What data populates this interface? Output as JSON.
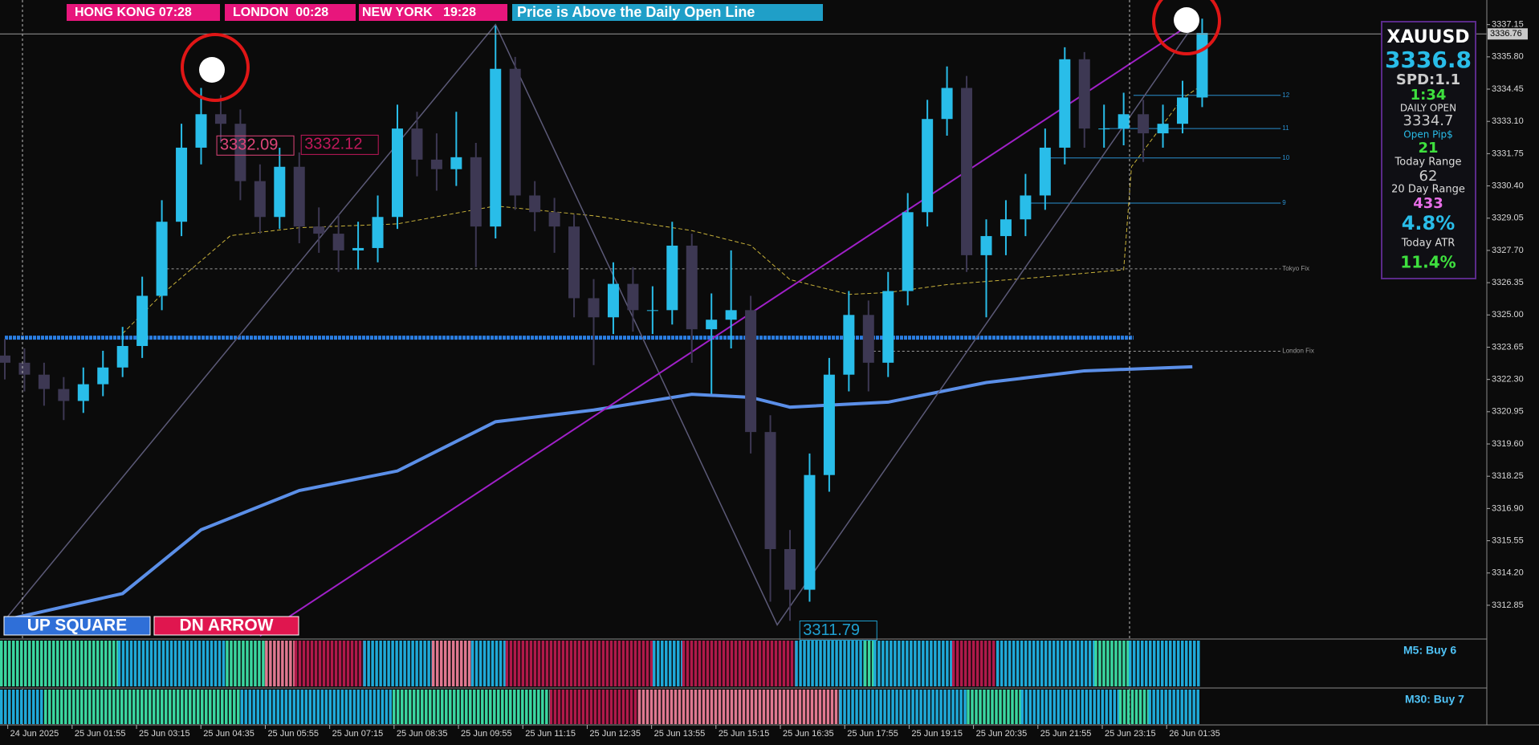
{
  "header": {
    "clocks": [
      "HONG KONG 07:28",
      "LONDON  00:28",
      "NEW YORK   19:28"
    ],
    "banner": "Price is Above the Daily Open Line"
  },
  "buttons": [
    "UP SQUARE",
    "DN ARROW"
  ],
  "panel": {
    "symbol": "XAUUSD",
    "price": "3336.8",
    "spread": "SPD:1.1",
    "timer": "1:34",
    "daily_open_label": "DAILY OPEN",
    "daily_open": "3334.7",
    "open_pips_label": "Open Pip$",
    "open_pips": "21",
    "today_range_label": "Today Range",
    "today_range": "62",
    "day20_range_label": "20 Day Range",
    "day20_range": "433",
    "ratio": "4.8%",
    "atr_label": "Today ATR",
    "atr": "11.4%"
  },
  "indicators": [
    "M5: Buy 6",
    "M30: Buy 7"
  ],
  "chart_data": {
    "type": "candlestick",
    "open": [
      3323.3,
      3323.0,
      3322.5,
      3321.9,
      3321.4,
      3322.1,
      3322.8,
      3323.7,
      3325.8,
      3328.9,
      3332.0,
      3333.4,
      3333.0,
      3330.6,
      3329.1,
      3331.2,
      3328.7,
      3328.4,
      3327.7,
      3327.8,
      3329.1,
      3332.8,
      3331.5,
      3331.1,
      3331.6,
      3328.7,
      3335.3,
      3330.0,
      3329.3,
      3328.7,
      3325.7,
      3324.9,
      3326.3,
      3325.2,
      3325.2,
      3327.9,
      3324.4,
      3324.8,
      3325.2,
      3320.1,
      3315.2,
      3313.5,
      3318.3,
      3322.5,
      3325.0,
      3323.0,
      3326.0,
      3329.3,
      3333.2,
      3334.5,
      3327.5,
      3328.3,
      3329.0,
      3330.0,
      3332.0,
      3335.7,
      3332.8,
      3332.8,
      3333.4,
      3332.6,
      3333.0,
      3334.1
    ],
    "high": [
      3324.0,
      3323.6,
      3323.0,
      3322.4,
      3322.8,
      3323.5,
      3324.5,
      3326.6,
      3329.8,
      3333.0,
      3334.5,
      3334.2,
      3333.6,
      3331.3,
      3332.0,
      3331.8,
      3329.5,
      3329.2,
      3328.9,
      3330.0,
      3333.8,
      3333.5,
      3332.6,
      3333.5,
      3332.2,
      3337.1,
      3335.8,
      3330.6,
      3329.9,
      3329.2,
      3326.5,
      3327.2,
      3327.0,
      3326.2,
      3328.9,
      3328.4,
      3325.9,
      3327.7,
      3325.8,
      3320.8,
      3316.0,
      3319.2,
      3323.2,
      3326.0,
      3325.6,
      3326.8,
      3330.1,
      3334.0,
      3335.4,
      3335.0,
      3329.0,
      3329.8,
      3330.9,
      3332.8,
      3336.2,
      3336.0,
      3333.8,
      3334.3,
      3334.0,
      3333.8,
      3334.8,
      3337.4
    ],
    "low": [
      3322.3,
      3321.8,
      3321.2,
      3320.6,
      3320.9,
      3321.6,
      3322.4,
      3323.2,
      3325.2,
      3328.3,
      3331.3,
      3332.2,
      3329.8,
      3328.4,
      3328.6,
      3328.0,
      3327.6,
      3326.8,
      3326.9,
      3327.2,
      3328.6,
      3330.8,
      3330.2,
      3330.4,
      3327.0,
      3328.2,
      3329.4,
      3328.5,
      3327.6,
      3324.9,
      3322.9,
      3324.2,
      3324.3,
      3324.2,
      3324.6,
      3323.0,
      3321.7,
      3323.6,
      3319.2,
      3313.0,
      3312.2,
      3313.0,
      3317.6,
      3321.8,
      3321.8,
      3322.4,
      3325.4,
      3328.7,
      3332.5,
      3326.8,
      3324.9,
      3327.5,
      3328.3,
      3329.4,
      3331.3,
      3332.0,
      3332.0,
      3332.1,
      3331.4,
      3332.0,
      3332.6,
      3333.7
    ],
    "close": [
      3323.0,
      3322.5,
      3321.9,
      3321.4,
      3322.1,
      3322.8,
      3323.7,
      3325.8,
      3328.9,
      3332.0,
      3333.4,
      3333.0,
      3330.6,
      3329.1,
      3331.2,
      3328.7,
      3328.4,
      3327.7,
      3327.8,
      3329.1,
      3332.8,
      3331.5,
      3331.1,
      3331.6,
      3328.7,
      3335.3,
      3330.0,
      3329.3,
      3328.7,
      3325.7,
      3324.9,
      3326.3,
      3325.2,
      3325.2,
      3327.9,
      3324.4,
      3324.8,
      3325.2,
      3320.1,
      3315.2,
      3313.5,
      3318.3,
      3322.5,
      3325.0,
      3323.0,
      3326.0,
      3329.3,
      3333.2,
      3334.5,
      3327.5,
      3328.3,
      3329.0,
      3330.0,
      3332.0,
      3335.7,
      3332.8,
      3332.8,
      3333.4,
      3332.6,
      3333.0,
      3334.1,
      3336.8
    ],
    "up_color": "#29bde9",
    "down_color": "#3d3853",
    "ylim": [
      3311.47,
      3338.18
    ],
    "yticks": [
      3337.15,
      {
        "value": 3335.8,
        "label": "3335.80"
      },
      3334.45,
      {
        "value": 3333.1,
        "label": "3333.10"
      },
      3331.75,
      {
        "value": 3330.4,
        "label": "3330.40"
      },
      3329.05,
      {
        "value": 3327.7,
        "label": "3327.70"
      },
      3326.35,
      {
        "value": 3325,
        "label": "3325.00"
      },
      3323.65,
      {
        "value": 3322.3,
        "label": "3322.30"
      },
      3320.95,
      {
        "value": 3319.6,
        "label": "3319.60"
      },
      3318.25,
      {
        "value": 3316.9,
        "label": "3316.90"
      },
      3315.55,
      {
        "value": 3314.2,
        "label": "3314.20"
      },
      3312.85
    ],
    "xticks": [
      {
        "value": 0.15,
        "label": "24 Jun 2025"
      },
      {
        "value": 3.43,
        "label": "25 Jun 01:55"
      },
      {
        "value": 6.71,
        "label": "25 Jun 03:15"
      },
      {
        "value": 9.99,
        "label": "25 Jun 04:35"
      },
      {
        "value": 13.27,
        "label": "25 Jun 05:55"
      },
      {
        "value": 16.55,
        "label": "25 Jun 07:15"
      },
      {
        "value": 19.83,
        "label": "25 Jun 08:35"
      },
      {
        "value": 23.11,
        "label": "25 Jun 09:55"
      },
      {
        "value": 26.39,
        "label": "25 Jun 11:15"
      },
      {
        "value": 29.67,
        "label": "25 Jun 12:35"
      },
      {
        "value": 32.95,
        "label": "25 Jun 13:55"
      },
      {
        "value": 36.23,
        "label": "25 Jun 15:15"
      },
      {
        "value": 39.51,
        "label": "25 Jun 16:35"
      },
      {
        "value": 42.79,
        "label": "25 Jun 17:55"
      },
      {
        "value": 46.07,
        "label": "25 Jun 19:15"
      },
      {
        "value": 49.35,
        "label": "25 Jun 20:35"
      },
      {
        "value": 52.63,
        "label": "25 Jun 21:55"
      },
      {
        "value": 55.91,
        "label": "25 Jun 23:15"
      },
      {
        "value": 59.19,
        "label": "26 Jun 01:35"
      }
    ],
    "last_price": 3336.76,
    "overlays": [
      {
        "color": "#5b8fe8",
        "width": 4,
        "x": [
          0,
          6,
          10,
          15,
          20,
          25,
          30,
          35,
          38,
          40,
          45,
          50,
          55,
          60.5
        ],
        "values": [
          3312.23,
          3313.34,
          3316.01,
          3317.65,
          3318.47,
          3320.53,
          3321.02,
          3321.68,
          3321.55,
          3321.14,
          3321.35,
          3322.17,
          3322.66,
          3322.83
        ]
      },
      {
        "color": "#c9b23a",
        "width": 1,
        "dashed": true,
        "x": [
          6,
          8,
          11.5,
          15,
          20,
          25,
          30,
          35,
          38,
          40,
          43,
          45,
          48,
          52.5,
          57,
          57.4,
          60,
          60.75
        ],
        "values": [
          3324.22,
          3325.86,
          3328.32,
          3328.65,
          3328.81,
          3329.56,
          3329.15,
          3328.53,
          3327.91,
          3326.48,
          3325.86,
          3325.94,
          3326.27,
          3326.56,
          3326.89,
          3331.2,
          3334.07,
          3334.48
        ]
      },
      {
        "color": "#5c5a78",
        "width": 1.5,
        "x": [
          0,
          25,
          39.35,
          60.75
        ],
        "values": [
          3312.23,
          3337.15,
          3312.03,
          3337.36
        ]
      },
      {
        "color": "#a020c8",
        "width": 2,
        "x": [
          13,
          60.75
        ],
        "values": [
          3311.57,
          3337.36
        ]
      }
    ],
    "levels": [
      {
        "value": 3324.05,
        "from": 0,
        "to": 57.5,
        "color": "#2a7de1",
        "daily": true
      },
      {
        "value": 3326.93,
        "from": 8,
        "to": 65,
        "color": "#9a9a9a",
        "label": "Tokyo Fix"
      },
      {
        "value": 3323.48,
        "from": 44,
        "to": 65,
        "color": "#9a9a9a",
        "label": "London Fix"
      },
      {
        "value": 3334.19,
        "from": 57.5,
        "to": 65,
        "color": "#2a90d0",
        "label": "12"
      },
      {
        "value": 3332.8,
        "from": 56,
        "to": 65,
        "color": "#2a90d0",
        "label": "11"
      },
      {
        "value": 3331.57,
        "from": 53,
        "to": 65,
        "color": "#2a90d0",
        "label": "10"
      },
      {
        "value": 3329.68,
        "from": 52,
        "to": 65,
        "color": "#2a90d0",
        "label": "9"
      }
    ],
    "annotations": [
      {
        "x": 10.8,
        "y": 3332.09,
        "color": "#e0457a"
      },
      {
        "x": 15.1,
        "y": 3332.12,
        "color": "#c2185b"
      },
      {
        "x": 40.5,
        "y": 3311.79,
        "color": "#1fa0d0"
      }
    ]
  }
}
